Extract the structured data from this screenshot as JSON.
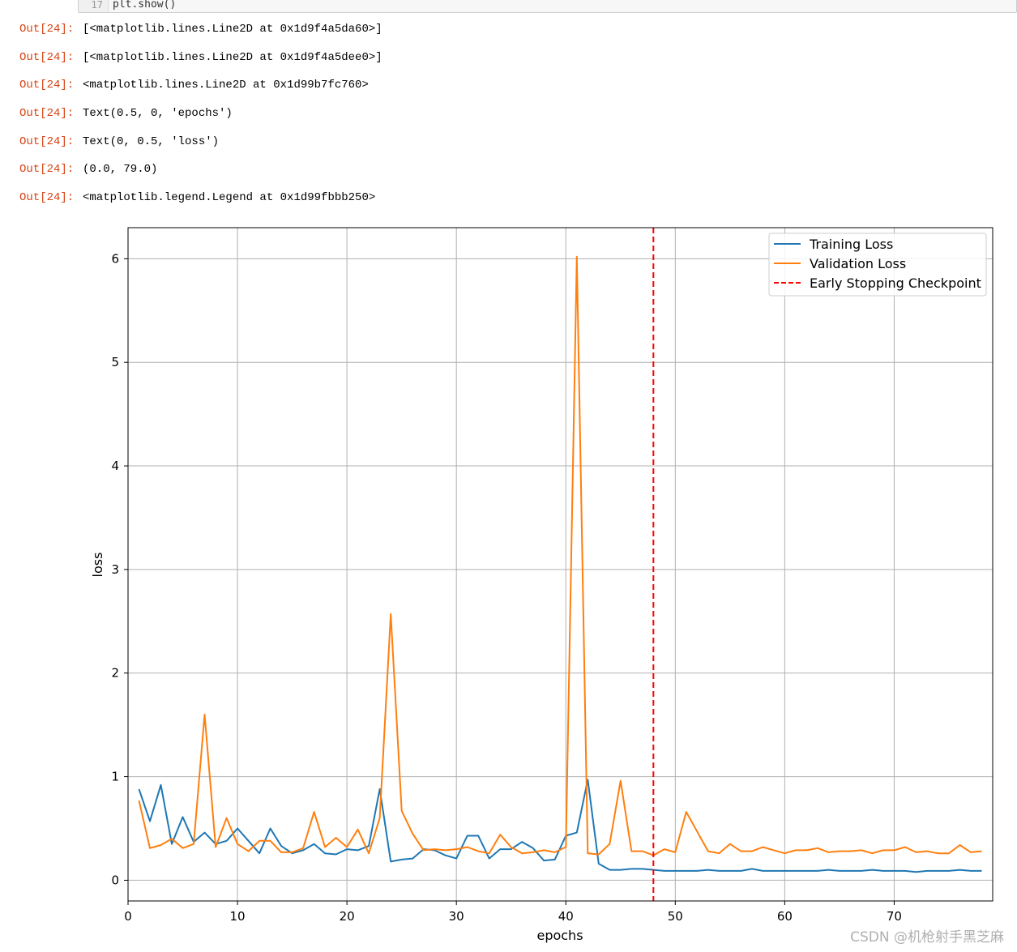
{
  "code_cell": {
    "line_number": "17",
    "code": "plt.show()"
  },
  "outputs": [
    {
      "prompt": "Out[24]:",
      "text": "[<matplotlib.lines.Line2D at 0x1d9f4a5da60>]"
    },
    {
      "prompt": "Out[24]:",
      "text": "[<matplotlib.lines.Line2D at 0x1d9f4a5dee0>]"
    },
    {
      "prompt": "Out[24]:",
      "text": "<matplotlib.lines.Line2D at 0x1d99b7fc760>"
    },
    {
      "prompt": "Out[24]:",
      "text": "Text(0.5, 0, 'epochs')"
    },
    {
      "prompt": "Out[24]:",
      "text": "Text(0, 0.5, 'loss')"
    },
    {
      "prompt": "Out[24]:",
      "text": "(0.0, 79.0)"
    },
    {
      "prompt": "Out[24]:",
      "text": "<matplotlib.legend.Legend at 0x1d99fbbb250>"
    }
  ],
  "watermark": "CSDN @机枪射手黑芝麻",
  "chart_data": {
    "type": "line",
    "title": "",
    "xlabel": "epochs",
    "ylabel": "loss",
    "xlim": [
      0,
      79
    ],
    "ylim": [
      -0.2,
      6.3
    ],
    "xticks": [
      0,
      10,
      20,
      30,
      40,
      50,
      60,
      70
    ],
    "yticks": [
      0,
      1,
      2,
      3,
      4,
      5,
      6
    ],
    "grid": true,
    "legend_position": "top-right",
    "x": [
      1,
      2,
      3,
      4,
      5,
      6,
      7,
      8,
      9,
      10,
      11,
      12,
      13,
      14,
      15,
      16,
      17,
      18,
      19,
      20,
      21,
      22,
      23,
      24,
      25,
      26,
      27,
      28,
      29,
      30,
      31,
      32,
      33,
      34,
      35,
      36,
      37,
      38,
      39,
      40,
      41,
      42,
      43,
      44,
      45,
      46,
      47,
      48,
      49,
      50,
      51,
      52,
      53,
      54,
      55,
      56,
      57,
      58,
      59,
      60,
      61,
      62,
      63,
      64,
      65,
      66,
      67,
      68,
      69,
      70,
      71,
      72,
      73,
      74,
      75,
      76,
      77,
      78
    ],
    "series": [
      {
        "name": "Training Loss",
        "color": "#1f77b4",
        "values": [
          0.88,
          0.57,
          0.92,
          0.35,
          0.61,
          0.37,
          0.46,
          0.35,
          0.38,
          0.5,
          0.38,
          0.26,
          0.5,
          0.33,
          0.26,
          0.29,
          0.35,
          0.26,
          0.25,
          0.3,
          0.29,
          0.33,
          0.88,
          0.18,
          0.2,
          0.21,
          0.3,
          0.29,
          0.24,
          0.21,
          0.43,
          0.43,
          0.21,
          0.3,
          0.3,
          0.37,
          0.31,
          0.19,
          0.2,
          0.43,
          0.46,
          0.97,
          0.16,
          0.1,
          0.1,
          0.11,
          0.11,
          0.1,
          0.09,
          0.09,
          0.09,
          0.09,
          0.1,
          0.09,
          0.09,
          0.09,
          0.11,
          0.09,
          0.09,
          0.09,
          0.09,
          0.09,
          0.09,
          0.1,
          0.09,
          0.09,
          0.09,
          0.1,
          0.09,
          0.09,
          0.09,
          0.08,
          0.09,
          0.09,
          0.09,
          0.1,
          0.09,
          0.09
        ]
      },
      {
        "name": "Validation Loss",
        "color": "#ff7f0e",
        "values": [
          0.77,
          0.31,
          0.34,
          0.4,
          0.31,
          0.35,
          1.6,
          0.32,
          0.6,
          0.35,
          0.28,
          0.38,
          0.38,
          0.27,
          0.27,
          0.31,
          0.66,
          0.32,
          0.41,
          0.32,
          0.49,
          0.26,
          0.6,
          2.57,
          0.67,
          0.45,
          0.29,
          0.3,
          0.29,
          0.3,
          0.32,
          0.28,
          0.26,
          0.44,
          0.32,
          0.26,
          0.27,
          0.29,
          0.27,
          0.32,
          6.02,
          0.26,
          0.25,
          0.35,
          0.96,
          0.28,
          0.28,
          0.24,
          0.3,
          0.27,
          0.66,
          0.47,
          0.28,
          0.26,
          0.35,
          0.28,
          0.28,
          0.32,
          0.29,
          0.26,
          0.29,
          0.29,
          0.31,
          0.27,
          0.28,
          0.28,
          0.29,
          0.26,
          0.29,
          0.29,
          0.32,
          0.27,
          0.28,
          0.26,
          0.26,
          0.34,
          0.27,
          0.28
        ]
      }
    ],
    "vlines": [
      {
        "name": "Early Stopping Checkpoint",
        "x": 48,
        "color": "#ff0000",
        "style": "dashed"
      }
    ]
  }
}
